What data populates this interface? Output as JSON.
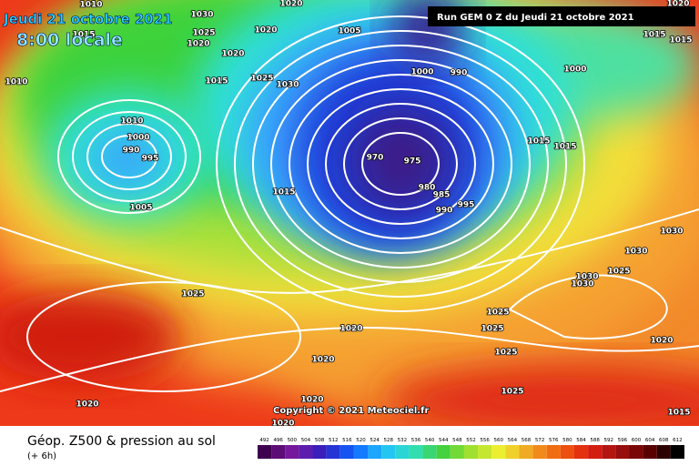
{
  "header": {
    "date": "Jeudi 21 octobre 2021",
    "time": "8:00 locale",
    "run": "Run GEM 0 Z du Jeudi 21 octobre 2021"
  },
  "isobar_labels": [
    1010,
    1010,
    1015,
    1030,
    1025,
    1020,
    1020,
    1015,
    1025,
    1030,
    1020,
    1020,
    1005,
    1000,
    990,
    1000,
    1015,
    1015,
    1020,
    1010,
    1000,
    990,
    995,
    1005,
    1015,
    970,
    975,
    980,
    985,
    990,
    995,
    1015,
    1015,
    1030,
    1030,
    1025,
    1030,
    1030,
    1025,
    1025,
    1025,
    1020,
    1020,
    1025,
    1020,
    1025,
    1020,
    1020,
    1020,
    1015
  ],
  "copyright": "Copyright © 2021 Meteociel.fr",
  "footer": {
    "title": "Géop. Z500 & pression au sol",
    "lead": "(+ 6h)"
  },
  "legend": {
    "levels": [
      492,
      496,
      500,
      504,
      508,
      512,
      516,
      520,
      524,
      528,
      532,
      536,
      540,
      544,
      548,
      552,
      556,
      560,
      564,
      568,
      572,
      576,
      580,
      584,
      588,
      592,
      596,
      600,
      604,
      608,
      612
    ]
  }
}
